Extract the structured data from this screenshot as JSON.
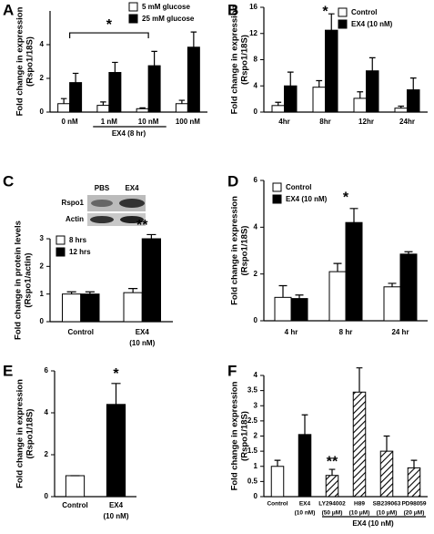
{
  "chart_data": [
    {
      "type": "bar",
      "label": "A",
      "ylabel": [
        "Fold change in expression",
        "(Rspo1/18S)"
      ],
      "categories": [
        "0 nM",
        "1 nM",
        "10 nM",
        "100 nM"
      ],
      "series": [
        {
          "name": "5 mM glucose",
          "color": "#ffffff",
          "values": [
            0.5,
            0.4,
            0.2,
            0.5
          ],
          "errors": [
            0.3,
            0.2,
            0.05,
            0.2
          ]
        },
        {
          "name": "25 mM glucose",
          "color": "#000000",
          "values": [
            1.75,
            2.35,
            2.75,
            3.85
          ],
          "errors": [
            0.55,
            0.6,
            0.85,
            0.9
          ]
        }
      ],
      "ylim": [
        0,
        6
      ],
      "yticks": [
        0,
        2,
        4
      ],
      "annotations": [
        "*"
      ],
      "group_label": "EX4 (8 hr)"
    },
    {
      "type": "bar",
      "label": "B",
      "ylabel": [
        "Fold change in expression",
        "(Rspo1/18S)"
      ],
      "categories": [
        "4hr",
        "8hr",
        "12hr",
        "24hr"
      ],
      "series": [
        {
          "name": "Control",
          "color": "#ffffff",
          "values": [
            1.0,
            3.8,
            2.1,
            0.6
          ],
          "errors": [
            0.5,
            1.0,
            1.0,
            0.3
          ]
        },
        {
          "name": "EX4 (10 nM)",
          "color": "#000000",
          "values": [
            4.0,
            12.5,
            6.3,
            3.4
          ],
          "errors": [
            2.1,
            2.5,
            2.0,
            1.8
          ]
        }
      ],
      "ylim": [
        0,
        16
      ],
      "yticks": [
        0,
        4,
        8,
        12,
        16
      ],
      "annotations": [
        "*"
      ]
    },
    {
      "type": "bar",
      "label": "C",
      "ylabel": [
        "Fold change in protein levels",
        "(Rspo1/actin)"
      ],
      "blot": {
        "lanes": [
          "PBS",
          "EX4"
        ],
        "rows": [
          "Rspo1",
          "Actin"
        ]
      },
      "categories": [
        [
          "Control"
        ],
        [
          "EX4",
          "(10 nM)"
        ]
      ],
      "series": [
        {
          "name": "8 hrs",
          "color": "#ffffff",
          "values": [
            1.0,
            1.05
          ],
          "errors": [
            0.08,
            0.15
          ]
        },
        {
          "name": "12 hrs",
          "color": "#000000",
          "values": [
            1.0,
            3.0
          ],
          "errors": [
            0.08,
            0.15
          ]
        }
      ],
      "ylim": [
        0,
        3
      ],
      "yticks": [
        0,
        1,
        2,
        3
      ],
      "annotations": [
        "**"
      ]
    },
    {
      "type": "bar",
      "label": "D",
      "ylabel": [
        "Fold change in expression",
        "(Rspo1/18S)"
      ],
      "categories": [
        "4 hr",
        "8 hr",
        "24 hr"
      ],
      "series": [
        {
          "name": "Control",
          "color": "#ffffff",
          "values": [
            1.0,
            2.1,
            1.45
          ],
          "errors": [
            0.5,
            0.35,
            0.15
          ]
        },
        {
          "name": "EX4 (10 nM)",
          "color": "#000000",
          "values": [
            0.95,
            4.2,
            2.85
          ],
          "errors": [
            0.15,
            0.6,
            0.1
          ]
        }
      ],
      "ylim": [
        0,
        6
      ],
      "yticks": [
        0,
        2,
        4,
        6
      ],
      "annotations": [
        "*"
      ]
    },
    {
      "type": "bar",
      "label": "E",
      "ylabel": [
        "Fold change in expression",
        "(Rspo1/18S)"
      ],
      "categories": [
        [
          "Control"
        ],
        [
          "EX4",
          "(10 nM)"
        ]
      ],
      "values": [
        1.0,
        4.4
      ],
      "errors": [
        0,
        1.0
      ],
      "colors": [
        "#ffffff",
        "#000000"
      ],
      "ylim": [
        0,
        6
      ],
      "yticks": [
        0,
        2,
        4,
        6
      ],
      "annotations": [
        "*"
      ]
    },
    {
      "type": "bar",
      "label": "F",
      "ylabel": [
        "Fold change in expression",
        "(Rspo1/18S)"
      ],
      "categories": [
        [
          "Control"
        ],
        [
          "EX4",
          "(10 nM)"
        ],
        [
          "LY294002",
          "(50 μM)"
        ],
        [
          "H89",
          "(10 μM)"
        ],
        [
          "SB239063",
          "(10 μM)"
        ],
        [
          "PD98059",
          "(20 μM)"
        ]
      ],
      "values": [
        1.0,
        2.05,
        0.7,
        3.45,
        1.5,
        0.95
      ],
      "errors": [
        0.2,
        0.65,
        0.2,
        0.8,
        0.5,
        0.25
      ],
      "colors": [
        "#ffffff",
        "#000000",
        "hatch",
        "hatch",
        "hatch",
        "hatch"
      ],
      "ylim": [
        0,
        4
      ],
      "yticks": [
        0,
        0.5,
        1,
        1.5,
        2,
        2.5,
        3,
        3.5,
        4
      ],
      "annotations": [
        "**"
      ],
      "group_label": "EX4 (10 nM)"
    }
  ]
}
